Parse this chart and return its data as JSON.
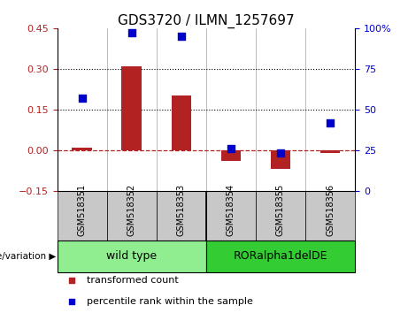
{
  "title": "GDS3720 / ILMN_1257697",
  "samples": [
    "GSM518351",
    "GSM518352",
    "GSM518353",
    "GSM518354",
    "GSM518355",
    "GSM518356"
  ],
  "transformed_count": [
    0.01,
    0.31,
    0.2,
    -0.04,
    -0.07,
    -0.01
  ],
  "percentile_rank": [
    57,
    97,
    95,
    26,
    23,
    42
  ],
  "bar_color": "#B22222",
  "dot_color": "#0000CC",
  "ylim_left": [
    -0.15,
    0.45
  ],
  "ylim_right": [
    0,
    100
  ],
  "yticks_left": [
    -0.15,
    0.0,
    0.15,
    0.3,
    0.45
  ],
  "yticks_right": [
    0,
    25,
    50,
    75,
    100
  ],
  "ytick_labels_right": [
    "0",
    "25",
    "50",
    "75",
    "100%"
  ],
  "hline_y": [
    0.15,
    0.3
  ],
  "zero_line_y": 0.0,
  "groups": [
    {
      "label": "wild type",
      "indices": [
        0,
        1,
        2
      ],
      "color": "#90EE90"
    },
    {
      "label": "RORalpha1delDE",
      "indices": [
        3,
        4,
        5
      ],
      "color": "#33CC33"
    }
  ],
  "group_label_prefix": "genotype/variation",
  "legend_items": [
    {
      "label": "transformed count",
      "color": "#B22222"
    },
    {
      "label": "percentile rank within the sample",
      "color": "#0000CC"
    }
  ],
  "bar_width": 0.4,
  "dot_size": 35,
  "xtick_bg": "#C8C8C8",
  "title_fontsize": 11,
  "tick_fontsize": 8,
  "sample_fontsize": 7,
  "group_fontsize": 9,
  "legend_fontsize": 8
}
